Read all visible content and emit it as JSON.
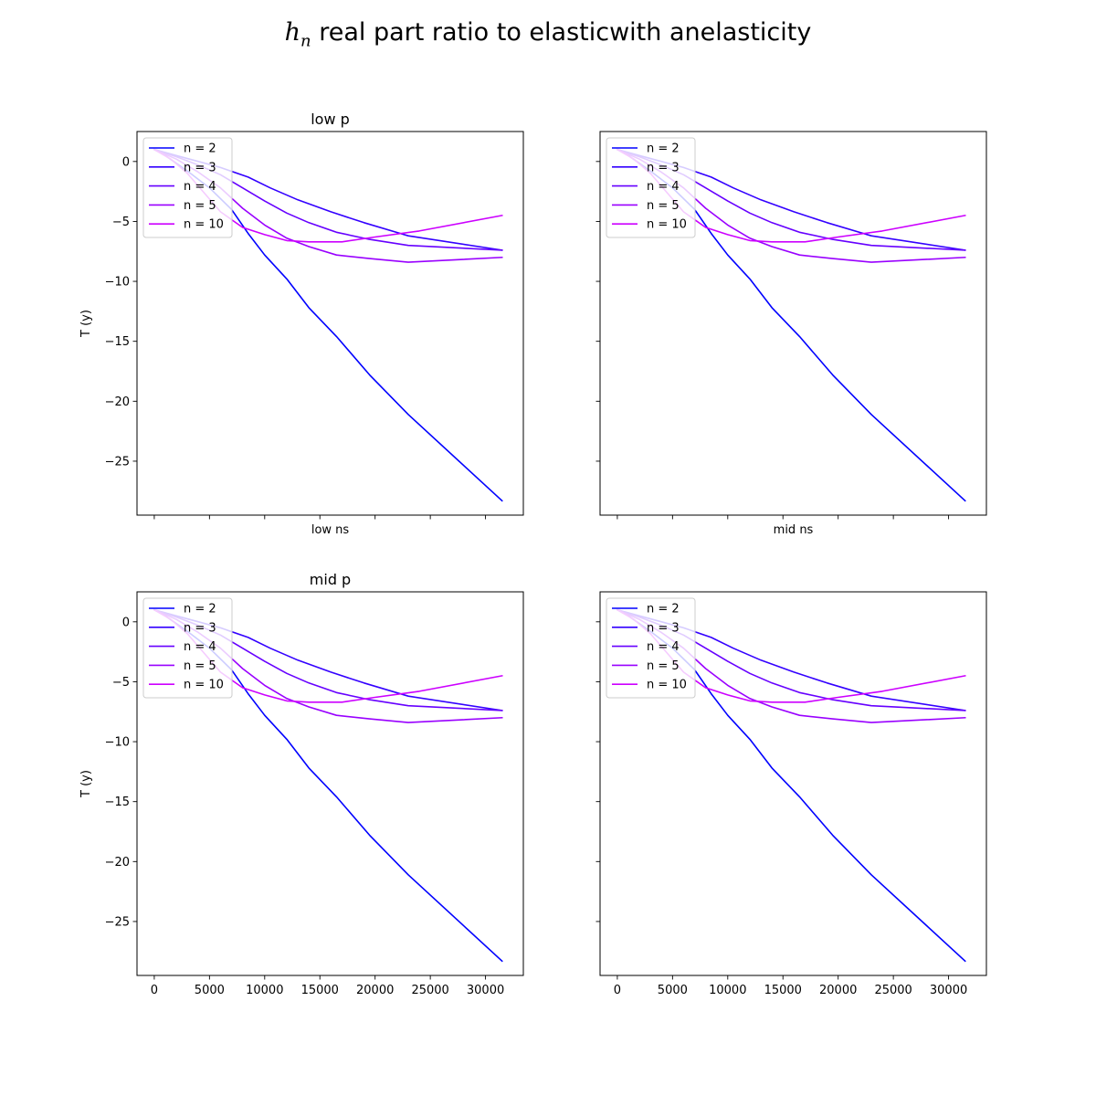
{
  "figure": {
    "title_symbol": "h",
    "title_subscript": "n",
    "title_text": " real part ratio to elasticwith anelasticity"
  },
  "chart_data": [
    {
      "type": "line",
      "title": "low p",
      "xlabel": "low ns",
      "ylabel": "T (y)",
      "xlim": [
        -1564,
        33426
      ],
      "ylim": [
        -29.5,
        2.5
      ],
      "x_ticks": [
        0,
        5000,
        10000,
        15000,
        20000,
        25000,
        30000
      ],
      "x_tick_labels_shown": false,
      "y_ticks": [
        0,
        -5,
        -10,
        -15,
        -20,
        -25
      ],
      "y_tick_labels_shown": true,
      "legend": "upper-left",
      "grid": false,
      "series": [
        {
          "name": "n = 2",
          "color": "#0000ff",
          "x": [
            0,
            1000,
            3000,
            5000,
            7000,
            8500,
            10000,
            12000,
            14000,
            16500,
            19500,
            23000,
            31500
          ],
          "y": [
            1.0,
            0.5,
            -0.8,
            -2.2,
            -4.0,
            -6.0,
            -7.8,
            -9.8,
            -12.2,
            -14.6,
            -17.8,
            -21.1,
            -28.3
          ]
        },
        {
          "name": "n = 3",
          "color": "#3300ff",
          "x": [
            0,
            2000,
            4000,
            6000,
            8500,
            10500,
            13000,
            16000,
            19000,
            23000,
            31500
          ],
          "y": [
            1.0,
            0.5,
            0.0,
            -0.5,
            -1.3,
            -2.2,
            -3.2,
            -4.2,
            -5.1,
            -6.2,
            -7.4
          ]
        },
        {
          "name": "n = 4",
          "color": "#6600ff",
          "x": [
            0,
            2000,
            4000,
            6000,
            8000,
            10000,
            12000,
            14000,
            16500,
            19500,
            23000,
            31500
          ],
          "y": [
            1.0,
            0.4,
            -0.3,
            -1.1,
            -2.2,
            -3.3,
            -4.3,
            -5.1,
            -5.9,
            -6.5,
            -7.0,
            -7.4
          ]
        },
        {
          "name": "n = 5",
          "color": "#9900ff",
          "x": [
            0,
            2000,
            4000,
            6000,
            8000,
            10000,
            12000,
            14000,
            16500,
            19500,
            23000,
            31500
          ],
          "y": [
            1.0,
            0.2,
            -0.9,
            -2.2,
            -3.9,
            -5.3,
            -6.4,
            -7.1,
            -7.8,
            -8.1,
            -8.4,
            -8.0
          ]
        },
        {
          "name": "n = 10",
          "color": "#cc00ff",
          "x": [
            0,
            1500,
            3000,
            4500,
            6000,
            8000,
            10000,
            12000,
            14000,
            17000,
            20000,
            24000,
            31500
          ],
          "y": [
            1.0,
            0.2,
            -1.0,
            -2.6,
            -4.2,
            -5.5,
            -6.1,
            -6.6,
            -6.7,
            -6.7,
            -6.3,
            -5.8,
            -4.5
          ]
        }
      ]
    },
    {
      "type": "line",
      "title": "",
      "xlabel": "mid ns",
      "ylabel": "",
      "xlim": [
        -1564,
        33426
      ],
      "ylim": [
        -29.5,
        2.5
      ],
      "x_ticks": [
        0,
        5000,
        10000,
        15000,
        20000,
        25000,
        30000
      ],
      "x_tick_labels_shown": false,
      "y_ticks": [
        0,
        -5,
        -10,
        -15,
        -20,
        -25
      ],
      "y_tick_labels_shown": false,
      "legend": "upper-left",
      "grid": false,
      "series": [
        {
          "name": "n = 2",
          "color": "#0000ff",
          "x": [
            0,
            1000,
            3000,
            5000,
            7000,
            8500,
            10000,
            12000,
            14000,
            16500,
            19500,
            23000,
            31500
          ],
          "y": [
            1.0,
            0.5,
            -0.8,
            -2.2,
            -4.0,
            -6.0,
            -7.8,
            -9.8,
            -12.2,
            -14.6,
            -17.8,
            -21.1,
            -28.3
          ]
        },
        {
          "name": "n = 3",
          "color": "#3300ff",
          "x": [
            0,
            2000,
            4000,
            6000,
            8500,
            10500,
            13000,
            16000,
            19000,
            23000,
            31500
          ],
          "y": [
            1.0,
            0.5,
            0.0,
            -0.5,
            -1.3,
            -2.2,
            -3.2,
            -4.2,
            -5.1,
            -6.2,
            -7.4
          ]
        },
        {
          "name": "n = 4",
          "color": "#6600ff",
          "x": [
            0,
            2000,
            4000,
            6000,
            8000,
            10000,
            12000,
            14000,
            16500,
            19500,
            23000,
            31500
          ],
          "y": [
            1.0,
            0.4,
            -0.3,
            -1.1,
            -2.2,
            -3.3,
            -4.3,
            -5.1,
            -5.9,
            -6.5,
            -7.0,
            -7.4
          ]
        },
        {
          "name": "n = 5",
          "color": "#9900ff",
          "x": [
            0,
            2000,
            4000,
            6000,
            8000,
            10000,
            12000,
            14000,
            16500,
            19500,
            23000,
            31500
          ],
          "y": [
            1.0,
            0.2,
            -0.9,
            -2.2,
            -3.9,
            -5.3,
            -6.4,
            -7.1,
            -7.8,
            -8.1,
            -8.4,
            -8.0
          ]
        },
        {
          "name": "n = 10",
          "color": "#cc00ff",
          "x": [
            0,
            1500,
            3000,
            4500,
            6000,
            8000,
            10000,
            12000,
            14000,
            17000,
            20000,
            24000,
            31500
          ],
          "y": [
            1.0,
            0.2,
            -1.0,
            -2.6,
            -4.2,
            -5.5,
            -6.1,
            -6.6,
            -6.7,
            -6.7,
            -6.3,
            -5.8,
            -4.5
          ]
        }
      ]
    },
    {
      "type": "line",
      "title": "mid p",
      "xlabel": "",
      "ylabel": "T (y)",
      "xlim": [
        -1564,
        33426
      ],
      "ylim": [
        -29.5,
        2.5
      ],
      "x_ticks": [
        0,
        5000,
        10000,
        15000,
        20000,
        25000,
        30000
      ],
      "x_tick_labels_shown": true,
      "y_ticks": [
        0,
        -5,
        -10,
        -15,
        -20,
        -25
      ],
      "y_tick_labels_shown": true,
      "legend": "upper-left",
      "grid": false,
      "series": [
        {
          "name": "n = 2",
          "color": "#0000ff",
          "x": [
            0,
            1000,
            3000,
            5000,
            7000,
            8500,
            10000,
            12000,
            14000,
            16500,
            19500,
            23000,
            31500
          ],
          "y": [
            1.0,
            0.5,
            -0.8,
            -2.2,
            -4.0,
            -6.0,
            -7.8,
            -9.8,
            -12.2,
            -14.6,
            -17.8,
            -21.1,
            -28.3
          ]
        },
        {
          "name": "n = 3",
          "color": "#3300ff",
          "x": [
            0,
            2000,
            4000,
            6000,
            8500,
            10500,
            13000,
            16000,
            19000,
            23000,
            31500
          ],
          "y": [
            1.0,
            0.5,
            0.0,
            -0.5,
            -1.3,
            -2.2,
            -3.2,
            -4.2,
            -5.1,
            -6.2,
            -7.4
          ]
        },
        {
          "name": "n = 4",
          "color": "#6600ff",
          "x": [
            0,
            2000,
            4000,
            6000,
            8000,
            10000,
            12000,
            14000,
            16500,
            19500,
            23000,
            31500
          ],
          "y": [
            1.0,
            0.4,
            -0.3,
            -1.1,
            -2.2,
            -3.3,
            -4.3,
            -5.1,
            -5.9,
            -6.5,
            -7.0,
            -7.4
          ]
        },
        {
          "name": "n = 5",
          "color": "#9900ff",
          "x": [
            0,
            2000,
            4000,
            6000,
            8000,
            10000,
            12000,
            14000,
            16500,
            19500,
            23000,
            31500
          ],
          "y": [
            1.0,
            0.2,
            -0.9,
            -2.2,
            -3.9,
            -5.3,
            -6.4,
            -7.1,
            -7.8,
            -8.1,
            -8.4,
            -8.0
          ]
        },
        {
          "name": "n = 10",
          "color": "#cc00ff",
          "x": [
            0,
            1500,
            3000,
            4500,
            6000,
            8000,
            10000,
            12000,
            14000,
            17000,
            20000,
            24000,
            31500
          ],
          "y": [
            1.0,
            0.2,
            -1.0,
            -2.6,
            -4.2,
            -5.5,
            -6.1,
            -6.6,
            -6.7,
            -6.7,
            -6.3,
            -5.8,
            -4.5
          ]
        }
      ]
    },
    {
      "type": "line",
      "title": "",
      "xlabel": "",
      "ylabel": "",
      "xlim": [
        -1564,
        33426
      ],
      "ylim": [
        -29.5,
        2.5
      ],
      "x_ticks": [
        0,
        5000,
        10000,
        15000,
        20000,
        25000,
        30000
      ],
      "x_tick_labels_shown": true,
      "y_ticks": [
        0,
        -5,
        -10,
        -15,
        -20,
        -25
      ],
      "y_tick_labels_shown": false,
      "legend": "upper-left",
      "grid": false,
      "series": [
        {
          "name": "n = 2",
          "color": "#0000ff",
          "x": [
            0,
            1000,
            3000,
            5000,
            7000,
            8500,
            10000,
            12000,
            14000,
            16500,
            19500,
            23000,
            31500
          ],
          "y": [
            1.0,
            0.5,
            -0.8,
            -2.2,
            -4.0,
            -6.0,
            -7.8,
            -9.8,
            -12.2,
            -14.6,
            -17.8,
            -21.1,
            -28.3
          ]
        },
        {
          "name": "n = 3",
          "color": "#3300ff",
          "x": [
            0,
            2000,
            4000,
            6000,
            8500,
            10500,
            13000,
            16000,
            19000,
            23000,
            31500
          ],
          "y": [
            1.0,
            0.5,
            0.0,
            -0.5,
            -1.3,
            -2.2,
            -3.2,
            -4.2,
            -5.1,
            -6.2,
            -7.4
          ]
        },
        {
          "name": "n = 4",
          "color": "#6600ff",
          "x": [
            0,
            2000,
            4000,
            6000,
            8000,
            10000,
            12000,
            14000,
            16500,
            19500,
            23000,
            31500
          ],
          "y": [
            1.0,
            0.4,
            -0.3,
            -1.1,
            -2.2,
            -3.3,
            -4.3,
            -5.1,
            -5.9,
            -6.5,
            -7.0,
            -7.4
          ]
        },
        {
          "name": "n = 5",
          "color": "#9900ff",
          "x": [
            0,
            2000,
            4000,
            6000,
            8000,
            10000,
            12000,
            14000,
            16500,
            19500,
            23000,
            31500
          ],
          "y": [
            1.0,
            0.2,
            -0.9,
            -2.2,
            -3.9,
            -5.3,
            -6.4,
            -7.1,
            -7.8,
            -8.1,
            -8.4,
            -8.0
          ]
        },
        {
          "name": "n = 10",
          "color": "#cc00ff",
          "x": [
            0,
            1500,
            3000,
            4500,
            6000,
            8000,
            10000,
            12000,
            14000,
            17000,
            20000,
            24000,
            31500
          ],
          "y": [
            1.0,
            0.2,
            -1.0,
            -2.6,
            -4.2,
            -5.5,
            -6.1,
            -6.6,
            -6.7,
            -6.7,
            -6.3,
            -5.8,
            -4.5
          ]
        }
      ]
    }
  ]
}
